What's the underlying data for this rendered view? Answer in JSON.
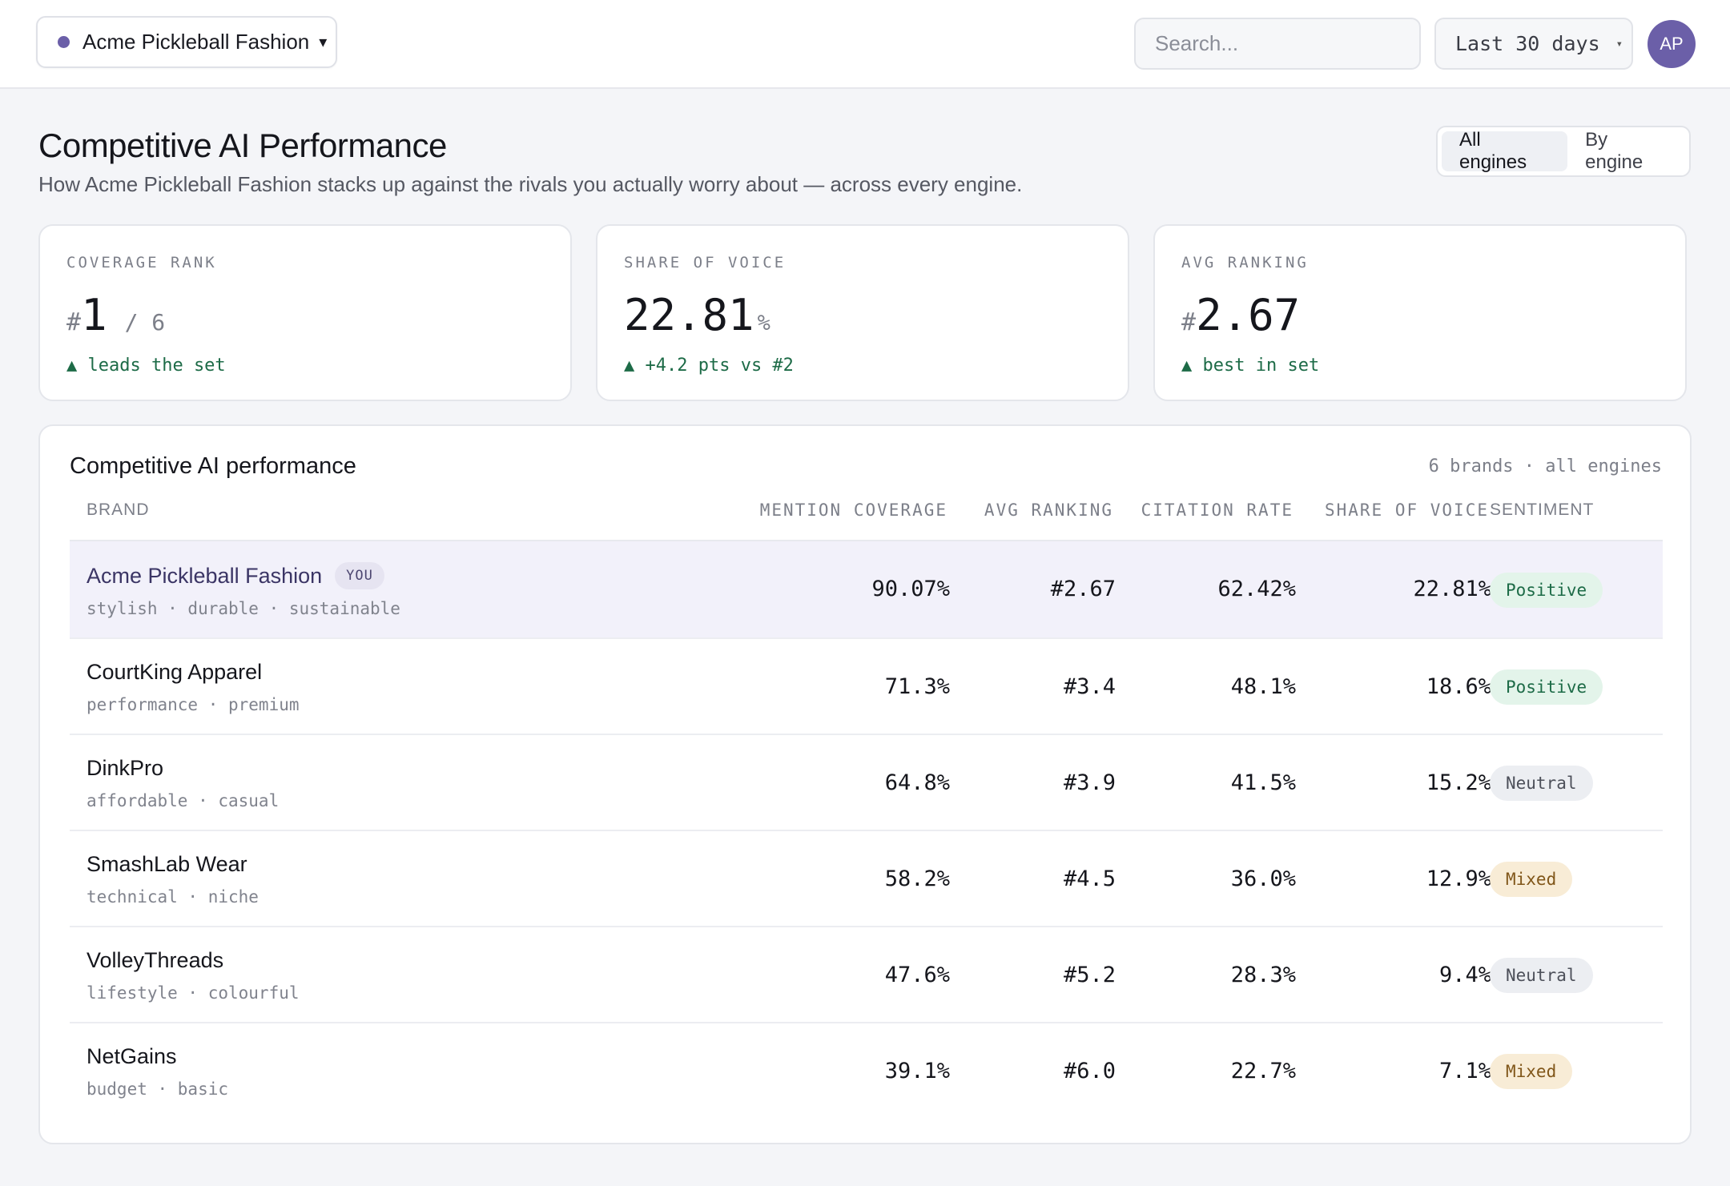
{
  "header": {
    "brand_selector": "Acme Pickleball Fashion",
    "caret": "▾",
    "search_placeholder": "Search...",
    "date_range": "Last 30 days",
    "date_caret": "▾",
    "avatar_initials": "AP",
    "colors": {
      "accent": "#6b5fa8"
    }
  },
  "page": {
    "title": "Competitive AI Performance",
    "subtitle": "How Acme Pickleball Fashion stacks up against the rivals you actually worry about — across every engine.",
    "view_toggle": {
      "options": [
        "All engines",
        "By engine"
      ],
      "selected": "All engines"
    }
  },
  "kpis": {
    "coverage_rank": {
      "label": "COVERAGE RANK",
      "prefix": "#",
      "value": "1",
      "total": "/ 6",
      "delta": "▲ leads the set"
    },
    "share_of_voice": {
      "label": "SHARE OF VOICE",
      "value": "22.81",
      "suffix": "%",
      "delta": "▲ +4.2 pts vs #2"
    },
    "avg_ranking": {
      "label": "AVG RANKING",
      "prefix": "#",
      "value": "2.67",
      "delta": "▲ best in set"
    }
  },
  "table": {
    "title": "Competitive AI performance",
    "meta": "6 brands · all engines",
    "columns": {
      "brand": "BRAND",
      "mention_coverage": "MENTION COVERAGE",
      "avg_ranking": "AVG RANKING",
      "citation_rate": "CITATION RATE",
      "share_of_voice": "SHARE OF VOICE",
      "sentiment": "SENTIMENT"
    },
    "you_badge": "YOU",
    "rows": [
      {
        "brand": "Acme Pickleball Fashion",
        "tags": "stylish · durable · sustainable",
        "coverage": "90.07%",
        "ranking": "#2.67",
        "citation": "62.42%",
        "sov": "22.81%",
        "sentiment": "Positive",
        "is_you": true
      },
      {
        "brand": "CourtKing Apparel",
        "tags": "performance · premium",
        "coverage": "71.3%",
        "ranking": "#3.4",
        "citation": "48.1%",
        "sov": "18.6%",
        "sentiment": "Positive"
      },
      {
        "brand": "DinkPro",
        "tags": "affordable · casual",
        "coverage": "64.8%",
        "ranking": "#3.9",
        "citation": "41.5%",
        "sov": "15.2%",
        "sentiment": "Neutral"
      },
      {
        "brand": "SmashLab Wear",
        "tags": "technical · niche",
        "coverage": "58.2%",
        "ranking": "#4.5",
        "citation": "36.0%",
        "sov": "12.9%",
        "sentiment": "Mixed"
      },
      {
        "brand": "VolleyThreads",
        "tags": "lifestyle · colourful",
        "coverage": "47.6%",
        "ranking": "#5.2",
        "citation": "28.3%",
        "sov": "9.4%",
        "sentiment": "Neutral"
      },
      {
        "brand": "NetGains",
        "tags": "budget · basic",
        "coverage": "39.1%",
        "ranking": "#6.0",
        "citation": "22.7%",
        "sov": "7.1%",
        "sentiment": "Mixed"
      }
    ]
  }
}
